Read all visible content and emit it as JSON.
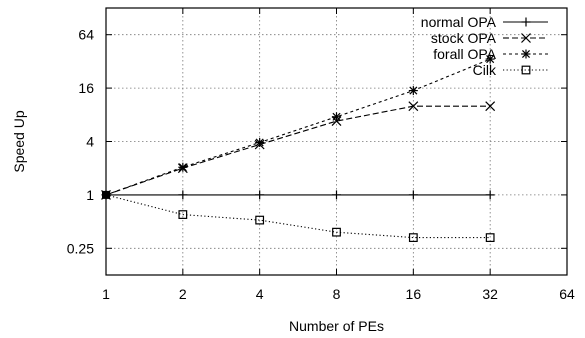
{
  "chart_data": {
    "type": "line",
    "xlabel": "Number of PEs",
    "ylabel": "Speed Up",
    "xscale": "log2",
    "yscale": "log2",
    "xlim": [
      1,
      64
    ],
    "ylim": [
      0.125,
      128
    ],
    "x_ticks": [
      1,
      2,
      4,
      8,
      16,
      32,
      64
    ],
    "x_tick_labels": [
      "1",
      "2",
      "4",
      "8",
      "16",
      "32",
      "64"
    ],
    "y_ticks": [
      0.25,
      1,
      4,
      16,
      64
    ],
    "y_tick_labels": [
      "0.25",
      "1",
      "4",
      "16",
      "64"
    ],
    "grid": true,
    "legend_position": "top-right",
    "series": [
      {
        "name": "normal OPA",
        "marker": "plus",
        "dash": "solid",
        "x": [
          1,
          2,
          4,
          8,
          16,
          32
        ],
        "y": [
          1,
          1,
          1,
          1,
          1,
          1
        ]
      },
      {
        "name": "stock OPA",
        "marker": "cross",
        "dash": "dashed",
        "x": [
          1,
          2,
          4,
          8,
          16,
          32
        ],
        "y": [
          1,
          2,
          3.7,
          6.8,
          10,
          10
        ]
      },
      {
        "name": "forall OPA",
        "marker": "star",
        "dash": "shortdash",
        "x": [
          1,
          2,
          4,
          8,
          16,
          32
        ],
        "y": [
          1,
          2.05,
          3.9,
          7.6,
          15,
          34
        ]
      },
      {
        "name": "Cilk",
        "marker": "square",
        "dash": "dotted",
        "x": [
          1,
          2,
          4,
          8,
          16,
          32
        ],
        "y": [
          1,
          0.6,
          0.52,
          0.38,
          0.33,
          0.33
        ]
      }
    ]
  }
}
